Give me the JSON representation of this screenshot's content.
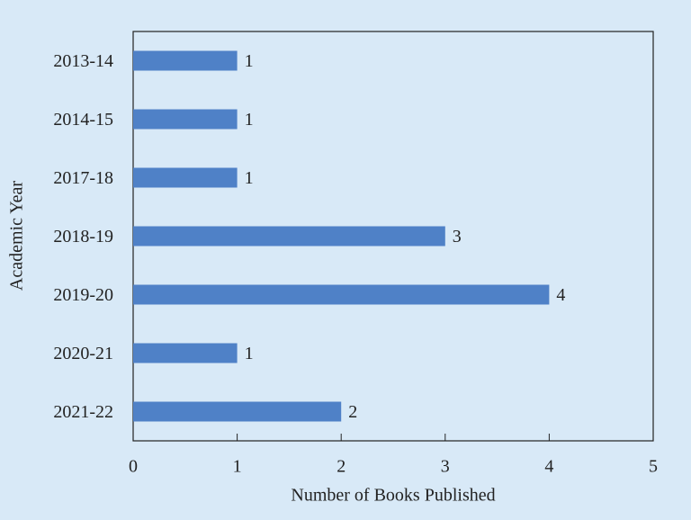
{
  "chart_data": {
    "type": "bar",
    "orientation": "horizontal",
    "x_label": "Number of Books Published",
    "y_label": "Academic Year",
    "categories": [
      "2013-14",
      "2014-15",
      "2017-18",
      "2018-19",
      "2019-20",
      "2020-21",
      "2021-22"
    ],
    "values": [
      1,
      1,
      1,
      3,
      4,
      1,
      2
    ],
    "color": "#4f81c7",
    "xlim": [
      0,
      5
    ],
    "xticks": [
      0,
      1,
      2,
      3,
      4,
      5
    ],
    "grid": false
  }
}
